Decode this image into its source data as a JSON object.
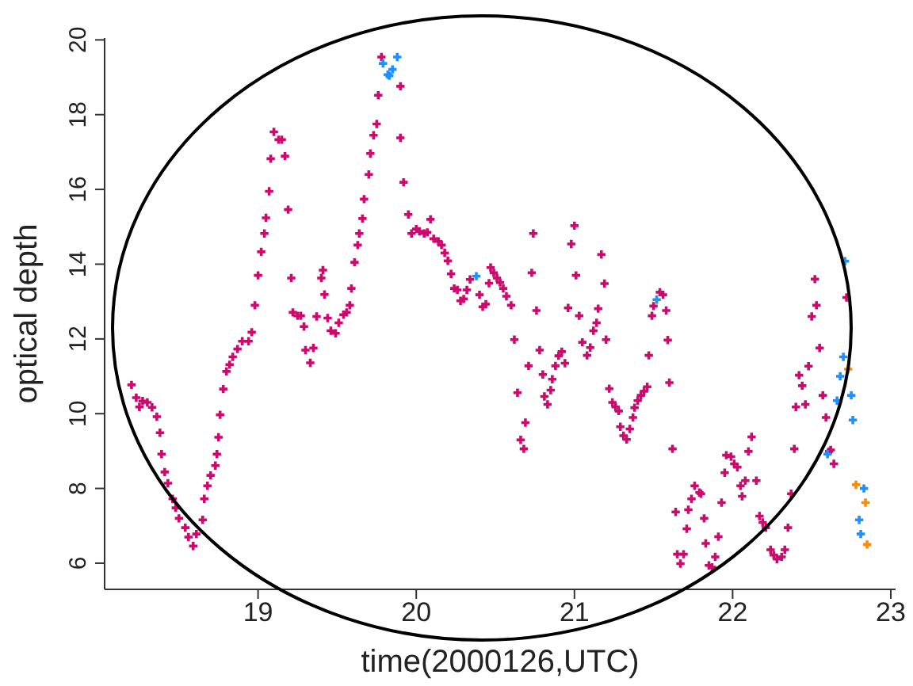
{
  "chart_data": {
    "type": "scatter",
    "xlabel": "time(2000126,UTC)",
    "ylabel": "optical depth",
    "xlim": [
      18.03,
      23.03
    ],
    "xticks": [
      19,
      20,
      21,
      22,
      23
    ],
    "ylim": [
      5.3,
      20.05
    ],
    "yticks": [
      6,
      8,
      10,
      12,
      14,
      16,
      18,
      20
    ],
    "marker": "cross",
    "series": [
      {
        "color": "#cc0a6e",
        "x": [
          18.2,
          18.23,
          18.25,
          18.27,
          18.3,
          18.33,
          18.36,
          18.38,
          18.39,
          18.41,
          18.43,
          18.46,
          18.48,
          18.5,
          18.54,
          18.56,
          18.59,
          18.61,
          18.65,
          18.66,
          18.68,
          18.7,
          18.73,
          18.74,
          18.75,
          18.76,
          18.78,
          18.8,
          18.82,
          18.84,
          18.87,
          18.9,
          18.94,
          18.96,
          18.98,
          19.0,
          19.02,
          19.04,
          19.05,
          19.07,
          19.08,
          19.1,
          19.13,
          19.15,
          19.17,
          19.19,
          19.21,
          19.22,
          19.25,
          19.27,
          19.29,
          19.3,
          19.33,
          19.35,
          19.37,
          19.4,
          19.41,
          19.42,
          19.44,
          19.46,
          19.49,
          19.51,
          19.54,
          19.56,
          19.58,
          19.59,
          19.61,
          19.63,
          19.64,
          19.66,
          19.67,
          19.7,
          19.71,
          19.73,
          19.75,
          19.76,
          19.78,
          19.9,
          19.9,
          19.92,
          19.95,
          19.97,
          20.0,
          20.02,
          20.05,
          20.07,
          20.09,
          20.11,
          20.14,
          20.16,
          20.18,
          20.2,
          20.22,
          20.24,
          20.26,
          20.28,
          20.3,
          20.32,
          20.34,
          20.4,
          20.42,
          20.44,
          20.46,
          20.47,
          20.49,
          20.51,
          20.53,
          20.55,
          20.57,
          20.6,
          20.62,
          20.64,
          20.66,
          20.68,
          20.69,
          20.71,
          20.73,
          20.74,
          20.76,
          20.78,
          20.8,
          20.81,
          20.83,
          20.85,
          20.86,
          20.88,
          20.9,
          20.92,
          20.94,
          20.96,
          20.98,
          21.0,
          21.01,
          21.03,
          21.05,
          21.08,
          21.1,
          21.12,
          21.14,
          21.15,
          21.17,
          21.19,
          21.2,
          21.22,
          21.24,
          21.26,
          21.28,
          21.29,
          21.31,
          21.33,
          21.35,
          21.37,
          21.38,
          21.4,
          21.42,
          21.44,
          21.46,
          21.47,
          21.49,
          21.5,
          21.54,
          21.56,
          21.58,
          21.59,
          21.6,
          21.62,
          21.64,
          21.65,
          21.67,
          21.69,
          21.71,
          21.72,
          21.74,
          21.76,
          21.79,
          21.8,
          21.82,
          21.83,
          21.85,
          21.87,
          21.89,
          21.91,
          21.93,
          21.95,
          21.96,
          21.99,
          22.01,
          22.03,
          22.05,
          22.06,
          22.08,
          22.1,
          22.12,
          22.15,
          22.17,
          22.19,
          22.21,
          22.24,
          22.26,
          22.28,
          22.31,
          22.33,
          22.35,
          22.37,
          22.39,
          22.4,
          22.42,
          22.44,
          22.46,
          22.48,
          22.5,
          22.52,
          22.53,
          22.55,
          22.57,
          22.59,
          22.61,
          22.62,
          22.64,
          22.72
        ],
        "values": [
          10.77,
          10.43,
          10.18,
          10.34,
          10.3,
          10.17,
          9.92,
          9.49,
          8.92,
          8.44,
          8.14,
          7.72,
          7.48,
          7.2,
          6.95,
          6.7,
          6.46,
          6.78,
          7.16,
          7.72,
          8.07,
          8.35,
          8.61,
          8.92,
          9.37,
          9.97,
          10.66,
          11.13,
          11.31,
          11.52,
          11.73,
          11.94,
          11.94,
          12.18,
          12.9,
          13.7,
          14.33,
          14.82,
          15.24,
          15.95,
          16.82,
          17.54,
          17.33,
          17.33,
          16.89,
          15.46,
          13.63,
          12.71,
          12.62,
          12.62,
          12.33,
          11.7,
          11.36,
          11.76,
          12.6,
          13.63,
          13.84,
          13.19,
          12.56,
          12.22,
          12.15,
          12.43,
          12.65,
          12.71,
          12.9,
          13.35,
          14.05,
          14.51,
          14.82,
          15.22,
          15.74,
          16.4,
          16.96,
          17.45,
          17.75,
          18.52,
          19.54,
          18.76,
          17.38,
          16.19,
          15.33,
          14.82,
          14.94,
          14.88,
          14.82,
          14.85,
          15.2,
          14.68,
          14.61,
          14.51,
          14.3,
          14.09,
          13.74,
          13.35,
          13.31,
          13.02,
          13.07,
          13.31,
          13.59,
          13.18,
          12.86,
          12.93,
          13.49,
          13.91,
          13.77,
          13.63,
          13.51,
          13.35,
          13.14,
          12.9,
          11.98,
          10.56,
          9.3,
          9.06,
          9.76,
          11.28,
          13.77,
          14.82,
          12.76,
          11.7,
          11.05,
          10.46,
          10.25,
          10.63,
          10.92,
          11.28,
          11.55,
          11.66,
          11.35,
          12.83,
          14.54,
          15.03,
          13.7,
          12.62,
          11.91,
          11.56,
          11.77,
          12.22,
          12.43,
          12.81,
          14.26,
          13.48,
          11.98,
          10.67,
          10.3,
          10.18,
          10.07,
          9.65,
          9.41,
          9.31,
          9.59,
          9.9,
          10.16,
          10.35,
          10.49,
          10.6,
          10.72,
          11.56,
          12.62,
          12.88,
          13.25,
          13.18,
          12.76,
          11.97,
          10.83,
          9.06,
          7.37,
          6.24,
          5.99,
          6.24,
          6.92,
          7.43,
          7.72,
          8.07,
          7.89,
          7.86,
          7.2,
          6.53,
          5.94,
          5.89,
          6.17,
          6.71,
          7.62,
          8.42,
          8.89,
          8.85,
          8.66,
          8.57,
          8.07,
          7.79,
          8.21,
          8.99,
          9.38,
          8.21,
          7.26,
          7.09,
          6.95,
          6.36,
          6.22,
          6.11,
          6.17,
          6.36,
          6.95,
          7.86,
          9.06,
          10.18,
          11.03,
          10.75,
          10.25,
          11.27,
          12.6,
          13.6,
          12.9,
          11.76,
          10.49,
          9.9,
          8.99,
          9.03,
          8.66,
          13.11
        ]
      },
      {
        "color": "#1e90ff",
        "x": [
          19.79,
          19.82,
          19.83,
          19.85,
          19.88,
          20.38,
          21.52,
          22.6,
          22.66,
          22.68,
          22.7,
          22.71,
          22.75,
          22.76,
          22.8,
          22.81,
          22.83
        ],
        "values": [
          19.37,
          19.07,
          19.04,
          19.21,
          19.54,
          13.68,
          13.05,
          8.92,
          10.35,
          11.0,
          11.52,
          14.08,
          10.49,
          9.83,
          7.16,
          6.78,
          8.0
        ]
      },
      {
        "color": "#ff8c00",
        "x": [
          22.73,
          22.78,
          22.84,
          22.85
        ],
        "values": [
          11.19,
          8.1,
          7.62,
          6.5
        ]
      }
    ]
  }
}
